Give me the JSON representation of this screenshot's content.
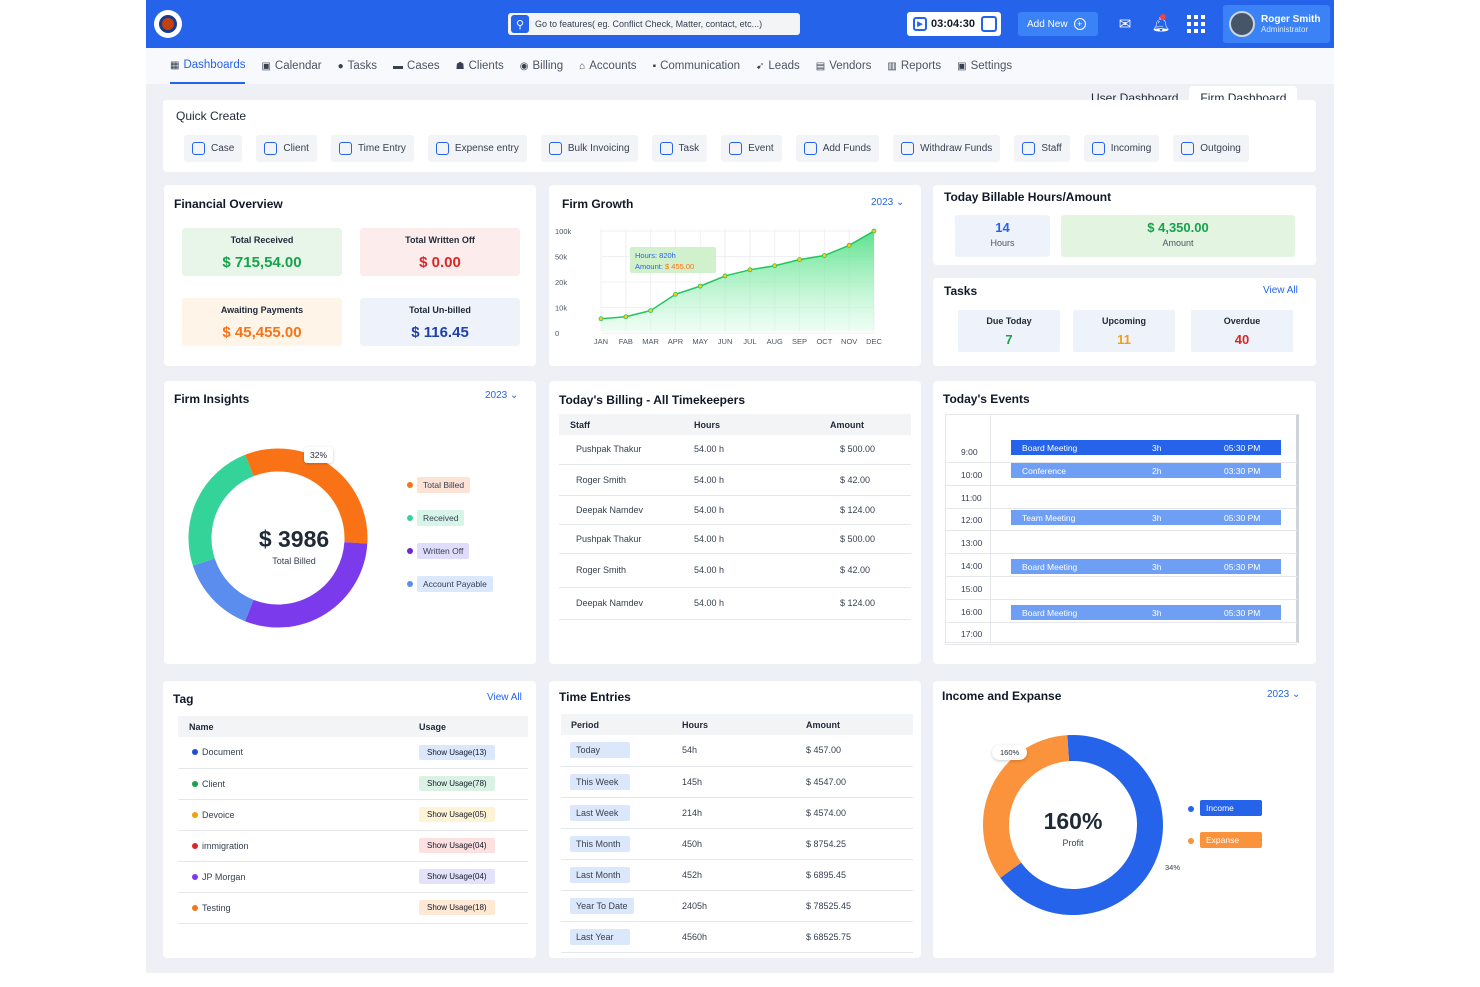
{
  "header": {
    "search_placeholder": "Go to features( eg. Conflict Check, Matter, contact, etc...)",
    "timer": "03:04:30",
    "add_new": "Add New",
    "user_name": "Roger Smith",
    "user_role": "Administrator",
    "accent_color": "#2563eb"
  },
  "nav": [
    {
      "label": "Dashboards",
      "icon": "dashboard-icon"
    },
    {
      "label": "Calendar",
      "icon": "calendar-icon"
    },
    {
      "label": "Tasks",
      "icon": "tasks-icon"
    },
    {
      "label": "Cases",
      "icon": "briefcase-icon"
    },
    {
      "label": "Clients",
      "icon": "users-icon"
    },
    {
      "label": "Billing",
      "icon": "billing-icon"
    },
    {
      "label": "Accounts",
      "icon": "bank-icon"
    },
    {
      "label": "Communication",
      "icon": "chat-icon"
    },
    {
      "label": "Leads",
      "icon": "leads-icon"
    },
    {
      "label": "Vendors",
      "icon": "vendors-icon"
    },
    {
      "label": "Reports",
      "icon": "reports-icon"
    },
    {
      "label": "Settings",
      "icon": "settings-icon"
    }
  ],
  "dashboard_tabs": {
    "user": "User Dashboard",
    "firm": "Firm Dashboard"
  },
  "quick_create": {
    "title": "Quick Create",
    "items": [
      "Case",
      "Client",
      "Time Entry",
      "Expense entry",
      "Bulk Invoicing",
      "Task",
      "Event",
      "Add Funds",
      "Withdraw Funds",
      "Staff",
      "Incoming",
      "Outgoing"
    ]
  },
  "financial": {
    "title": "Financial Overview",
    "received_label": "Total Received",
    "received": "$ 715,54.00",
    "written_off_label": "Total Written Off",
    "written_off": "$ 0.00",
    "awaiting_label": "Awaiting Payments",
    "awaiting": "$ 45,455.00",
    "unbilled_label": "Total Un-billed",
    "unbilled": "$ 116.45"
  },
  "firm_growth": {
    "title": "Firm Growth",
    "year": "2023",
    "tooltip_hours": "Hours: 820h",
    "tooltip_amount_label": "Amount:",
    "tooltip_amount": "$ 455.00"
  },
  "chart_data": {
    "type": "area",
    "title": "Firm Growth",
    "categories": [
      "JAN",
      "FAB",
      "MAR",
      "APR",
      "MAY",
      "JUN",
      "JUL",
      "AUG",
      "SEP",
      "OCT",
      "NOV",
      "DEC"
    ],
    "y_ticks": [
      "100k",
      "50k",
      "20k",
      "10k",
      "0"
    ],
    "series": [
      {
        "values": [
          12,
          14,
          20,
          36,
          44,
          54,
          60,
          64,
          70,
          74,
          84,
          98
        ]
      }
    ],
    "ylim": [
      0,
      100
    ],
    "grid": true
  },
  "billable": {
    "title": "Today Billable Hours/Amount",
    "hours": "14",
    "hours_label": "Hours",
    "amount": "$ 4,350.00",
    "amount_label": "Amount"
  },
  "tasks": {
    "title": "Tasks",
    "view_all": "View All",
    "due_label": "Due Today",
    "due": "7",
    "upcoming_label": "Upcoming",
    "upcoming": "11",
    "overdue_label": "Overdue",
    "overdue": "40"
  },
  "insights": {
    "title": "Firm Insights",
    "year": "2023",
    "center_value": "$ 3986",
    "center_label": "Total Billed",
    "callout": "32%",
    "legend": [
      "Total Billed",
      "Received",
      "Written Off",
      "Account Payable"
    ],
    "slice_fractions": [
      0.32,
      0.3,
      0.14,
      0.24
    ],
    "colors": [
      "#f97316",
      "#7c3aed",
      "#5b8def",
      "#34d399"
    ]
  },
  "billing": {
    "title": "Today's Billing - All Timekeepers",
    "headers": [
      "Staff",
      "Hours",
      "Amount"
    ],
    "rows": [
      [
        "Pushpak Thakur",
        "54.00 h",
        "$ 500.00"
      ],
      [
        "Roger Smith",
        "54.00 h",
        "$ 42.00"
      ],
      [
        "Deepak Namdev",
        "54.00 h",
        "$ 124.00"
      ],
      [
        "Pushpak Thakur",
        "54.00 h",
        "$ 500.00"
      ],
      [
        "Roger Smith",
        "54.00 h",
        "$ 42.00"
      ],
      [
        "Deepak Namdev",
        "54.00 h",
        "$ 124.00"
      ]
    ]
  },
  "events": {
    "title": "Today's Events",
    "times": [
      "9:00",
      "10:00",
      "11:00",
      "12:00",
      "13:00",
      "14:00",
      "15:00",
      "16:00",
      "17:00"
    ],
    "items": [
      {
        "name": "Board Meeting",
        "duration": "3h",
        "time": "05:30 PM"
      },
      {
        "name": "Conference",
        "duration": "2h",
        "time": "03:30 PM"
      },
      {
        "name": "Team Meeting",
        "duration": "3h",
        "time": "05:30 PM"
      },
      {
        "name": "Board Meeting",
        "duration": "3h",
        "time": "05:30 PM"
      },
      {
        "name": "Board Meeting",
        "duration": "3h",
        "time": "05:30 PM"
      }
    ]
  },
  "tag": {
    "title": "Tag",
    "view_all": "View All",
    "headers": [
      "Name",
      "Usage"
    ],
    "rows": [
      {
        "name": "Document",
        "usage": "Show Usage(13)",
        "color": "#1d4ed8",
        "bg": "#dbe7fb"
      },
      {
        "name": "Client",
        "usage": "Show Usage(78)",
        "color": "#16a34a",
        "bg": "#d9f2e3"
      },
      {
        "name": "Devoice",
        "usage": "Show Usage(05)",
        "color": "#f59e0b",
        "bg": "#fff3d6"
      },
      {
        "name": "immigration",
        "usage": "Show Usage(04)",
        "color": "#dc2626",
        "bg": "#fde0e0"
      },
      {
        "name": "JP Morgan",
        "usage": "Show Usage(04)",
        "color": "#7c3aed",
        "bg": "#e4e1fb"
      },
      {
        "name": "Testing",
        "usage": "Show Usage(18)",
        "color": "#f97316",
        "bg": "#ffe9d5"
      }
    ]
  },
  "time_entries": {
    "title": "Time Entries",
    "headers": [
      "Period",
      "Hours",
      "Amount"
    ],
    "rows": [
      [
        "Today",
        "54h",
        "$ 457.00"
      ],
      [
        "This Week",
        "145h",
        "$ 4547.00"
      ],
      [
        "Last Week",
        "214h",
        "$ 4574.00"
      ],
      [
        "This Month",
        "450h",
        "$ 8754.25"
      ],
      [
        "Last Month",
        "452h",
        "$ 6895.45"
      ],
      [
        "Year To Date",
        "2405h",
        "$ 78525.45"
      ],
      [
        "Last Year",
        "4560h",
        "$ 68525.75"
      ]
    ]
  },
  "income": {
    "title": "Income and Expanse",
    "year": "2023",
    "center_value": "160%",
    "center_label": "Profit",
    "callout_top": "160%",
    "callout_right": "34%",
    "legend": [
      "Income",
      "Expanse"
    ],
    "slice_fractions": [
      0.66,
      0.34
    ],
    "colors": [
      "#2563eb",
      "#fb923c"
    ]
  }
}
